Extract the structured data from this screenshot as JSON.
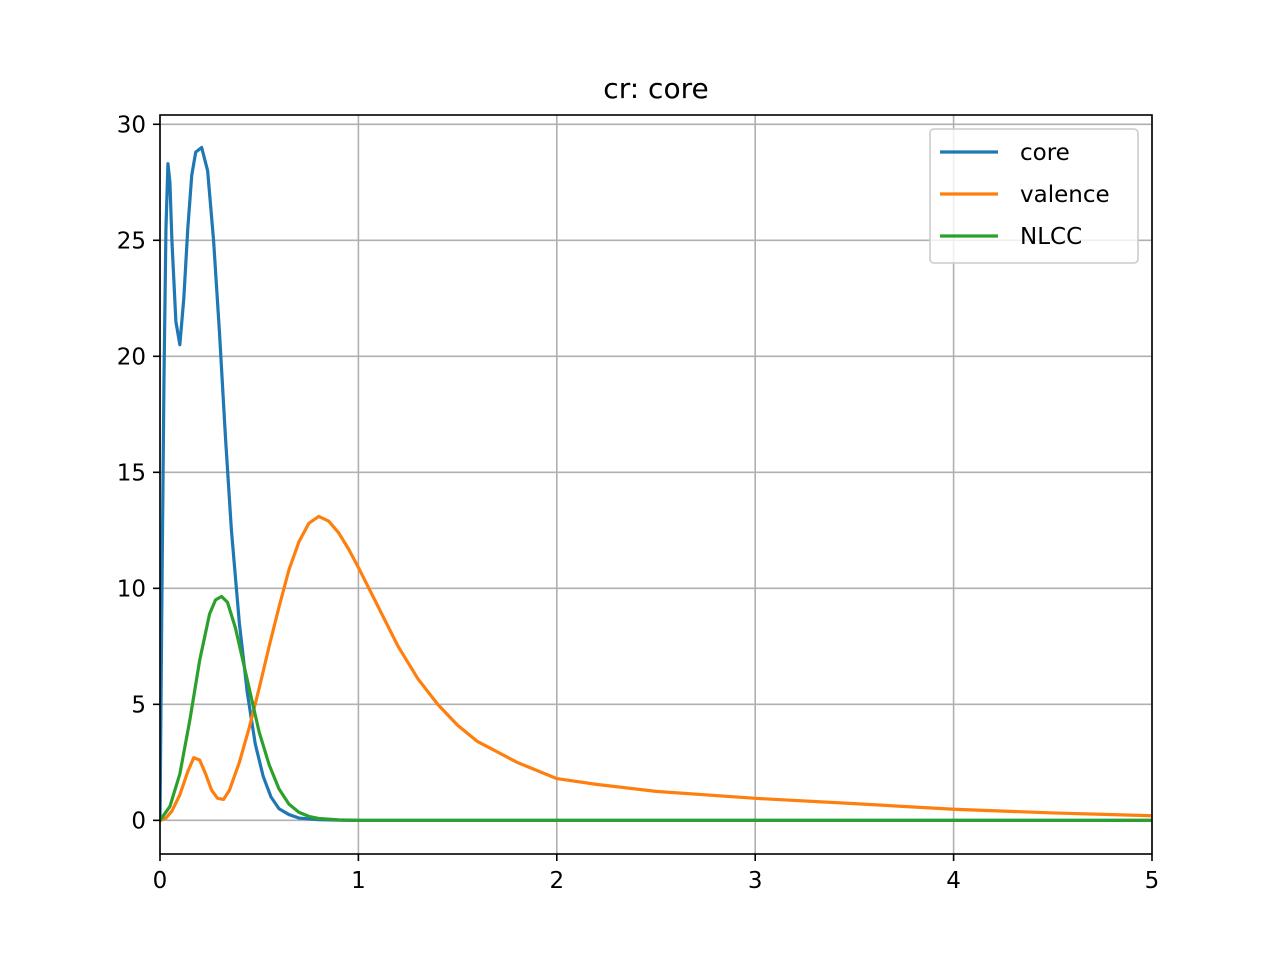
{
  "chart_data": {
    "type": "line",
    "title": "cr: core",
    "xlabel": "",
    "ylabel": "",
    "xlim": [
      0,
      5
    ],
    "ylim": [
      -1.45,
      30.4
    ],
    "xticks": [
      0,
      1,
      2,
      3,
      4,
      5
    ],
    "yticks": [
      0,
      5,
      10,
      15,
      20,
      25,
      30
    ],
    "grid": true,
    "legend_position": "top-right",
    "series": [
      {
        "name": "core",
        "color": "#1f77b4",
        "points": [
          [
            0,
            0
          ],
          [
            0.01,
            10.0
          ],
          [
            0.02,
            19.0
          ],
          [
            0.03,
            25.5
          ],
          [
            0.04,
            28.3
          ],
          [
            0.05,
            27.5
          ],
          [
            0.06,
            25.0
          ],
          [
            0.08,
            21.5
          ],
          [
            0.1,
            20.5
          ],
          [
            0.12,
            22.5
          ],
          [
            0.14,
            25.5
          ],
          [
            0.16,
            27.8
          ],
          [
            0.18,
            28.8
          ],
          [
            0.21,
            29.0
          ],
          [
            0.24,
            28.0
          ],
          [
            0.27,
            25.0
          ],
          [
            0.3,
            21.0
          ],
          [
            0.33,
            16.5
          ],
          [
            0.36,
            12.5
          ],
          [
            0.4,
            8.5
          ],
          [
            0.44,
            5.5
          ],
          [
            0.48,
            3.3
          ],
          [
            0.52,
            1.9
          ],
          [
            0.56,
            1.0
          ],
          [
            0.6,
            0.5
          ],
          [
            0.65,
            0.25
          ],
          [
            0.7,
            0.1
          ],
          [
            0.8,
            0.03
          ],
          [
            0.9,
            0.01
          ],
          [
            1.0,
            0.0
          ],
          [
            2.0,
            0.0
          ],
          [
            3.0,
            0.0
          ],
          [
            4.0,
            0.0
          ],
          [
            5.0,
            0.0
          ]
        ]
      },
      {
        "name": "valence",
        "color": "#ff7f0e",
        "points": [
          [
            0,
            0
          ],
          [
            0.03,
            0.1
          ],
          [
            0.06,
            0.4
          ],
          [
            0.1,
            1.1
          ],
          [
            0.14,
            2.1
          ],
          [
            0.17,
            2.7
          ],
          [
            0.2,
            2.6
          ],
          [
            0.23,
            2.0
          ],
          [
            0.26,
            1.3
          ],
          [
            0.29,
            0.95
          ],
          [
            0.32,
            0.9
          ],
          [
            0.35,
            1.3
          ],
          [
            0.4,
            2.5
          ],
          [
            0.45,
            4.0
          ],
          [
            0.5,
            5.7
          ],
          [
            0.55,
            7.5
          ],
          [
            0.6,
            9.2
          ],
          [
            0.65,
            10.8
          ],
          [
            0.7,
            12.0
          ],
          [
            0.75,
            12.8
          ],
          [
            0.8,
            13.1
          ],
          [
            0.85,
            12.9
          ],
          [
            0.9,
            12.4
          ],
          [
            0.95,
            11.7
          ],
          [
            1.0,
            10.9
          ],
          [
            1.1,
            9.2
          ],
          [
            1.2,
            7.5
          ],
          [
            1.3,
            6.1
          ],
          [
            1.4,
            5.0
          ],
          [
            1.5,
            4.1
          ],
          [
            1.6,
            3.4
          ],
          [
            1.8,
            2.5
          ],
          [
            2.0,
            1.8
          ],
          [
            2.2,
            1.55
          ],
          [
            2.5,
            1.25
          ],
          [
            3.0,
            0.95
          ],
          [
            3.5,
            0.72
          ],
          [
            4.0,
            0.48
          ],
          [
            4.5,
            0.32
          ],
          [
            5.0,
            0.2
          ]
        ]
      },
      {
        "name": "NLCC",
        "color": "#2ca02c",
        "points": [
          [
            0,
            0
          ],
          [
            0.05,
            0.6
          ],
          [
            0.1,
            2.0
          ],
          [
            0.15,
            4.3
          ],
          [
            0.2,
            6.9
          ],
          [
            0.25,
            8.9
          ],
          [
            0.28,
            9.5
          ],
          [
            0.31,
            9.65
          ],
          [
            0.34,
            9.4
          ],
          [
            0.38,
            8.3
          ],
          [
            0.42,
            6.8
          ],
          [
            0.46,
            5.3
          ],
          [
            0.5,
            3.8
          ],
          [
            0.55,
            2.4
          ],
          [
            0.6,
            1.35
          ],
          [
            0.65,
            0.7
          ],
          [
            0.7,
            0.35
          ],
          [
            0.75,
            0.17
          ],
          [
            0.8,
            0.08
          ],
          [
            0.9,
            0.02
          ],
          [
            1.0,
            0.0
          ],
          [
            2.0,
            0.0
          ],
          [
            3.0,
            0.0
          ],
          [
            4.0,
            0.0
          ],
          [
            5.0,
            0.0
          ]
        ]
      }
    ]
  }
}
